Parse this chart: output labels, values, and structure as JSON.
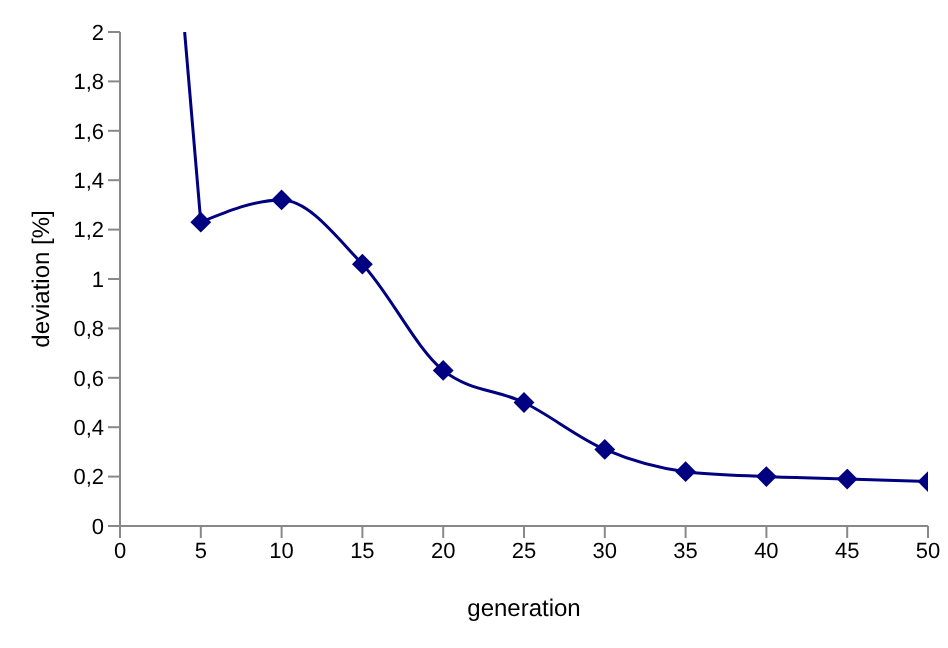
{
  "chart_data": {
    "type": "line",
    "xlabel": "generation",
    "ylabel": "deviation [%]",
    "xlim": [
      0,
      50
    ],
    "xticks": [
      0,
      5,
      10,
      15,
      20,
      25,
      30,
      35,
      40,
      45,
      50
    ],
    "ylim": [
      0,
      2
    ],
    "yticks": [
      0,
      {
        "value": 0.2,
        "label": "0,2"
      },
      {
        "value": 0.4,
        "label": "0,4"
      },
      {
        "value": 0.6,
        "label": "0,6"
      },
      {
        "value": 0.8,
        "label": "0,8"
      },
      1,
      {
        "value": 1.2,
        "label": "1,2"
      },
      {
        "value": 1.4,
        "label": "1,4"
      },
      {
        "value": 1.6,
        "label": "1,6"
      },
      {
        "value": 1.8,
        "label": "1,8"
      },
      2
    ],
    "grid": false,
    "series": [
      {
        "color": "#000080",
        "x": [
          4,
          5
        ],
        "values": [
          2,
          1.23
        ]
      },
      {
        "color": "#000080",
        "x": [
          5,
          10,
          15,
          20,
          25,
          30,
          35,
          40,
          45,
          50
        ],
        "values": [
          1.23,
          1.32,
          1.06,
          0.63,
          0.5,
          0.31,
          0.22,
          0.2,
          0.19,
          0.18
        ],
        "marker": "diamond"
      }
    ]
  }
}
